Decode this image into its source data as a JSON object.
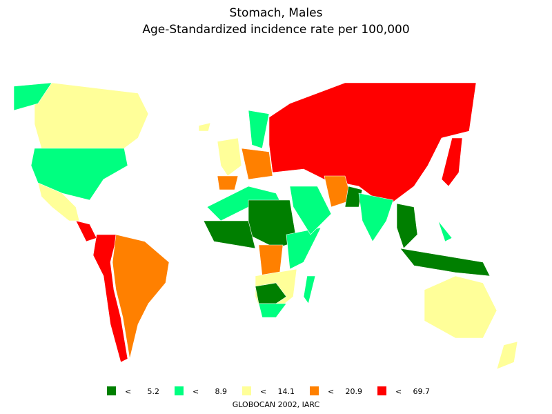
{
  "title": [
    "Stomach, Males",
    "Age-Standardized incidence rate per 100,000"
  ],
  "legend": [
    {
      "color": "#007f00",
      "symbol": "<",
      "value": 5.2
    },
    {
      "color": "#00ff80",
      "symbol": "<",
      "value": 8.9
    },
    {
      "color": "#ffff99",
      "symbol": "<",
      "value": 14.1
    },
    {
      "color": "#ff8000",
      "symbol": "<",
      "value": 20.9
    },
    {
      "color": "#ff0000",
      "symbol": "<",
      "value": 69.7
    }
  ],
  "source": "GLOBOCAN 2002, IARC"
}
